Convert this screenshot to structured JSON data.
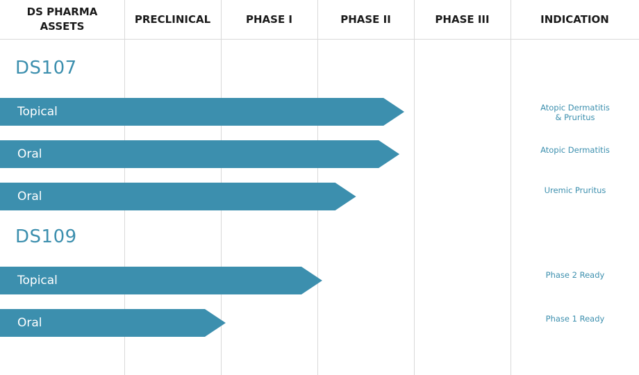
{
  "chart_data": {
    "type": "bar",
    "stages": [
      "PRECLINICAL",
      "PHASE I",
      "PHASE II",
      "PHASE III"
    ],
    "columns": {
      "asset_header": "DS PHARMA\nASSETS",
      "indication_header": "INDICATION"
    },
    "assets": [
      {
        "name": "DS107",
        "programs": [
          {
            "label": "Topical",
            "progress": 2.9,
            "indication": "Atopic Dermatitis\n& Pruritus"
          },
          {
            "label": "Oral",
            "progress": 2.85,
            "indication": "Atopic Dermatitis"
          },
          {
            "label": "Oral",
            "progress": 2.4,
            "indication": "Uremic Pruritus"
          }
        ]
      },
      {
        "name": "DS109",
        "programs": [
          {
            "label": "Topical",
            "progress": 2.05,
            "indication": "Phase 2 Ready"
          },
          {
            "label": "Oral",
            "progress": 1.05,
            "indication": "Phase 1 Ready"
          }
        ]
      }
    ],
    "colors": {
      "bar": "#3c8fae",
      "text": "#3c8fae",
      "grid": "#d9d9d9"
    }
  }
}
